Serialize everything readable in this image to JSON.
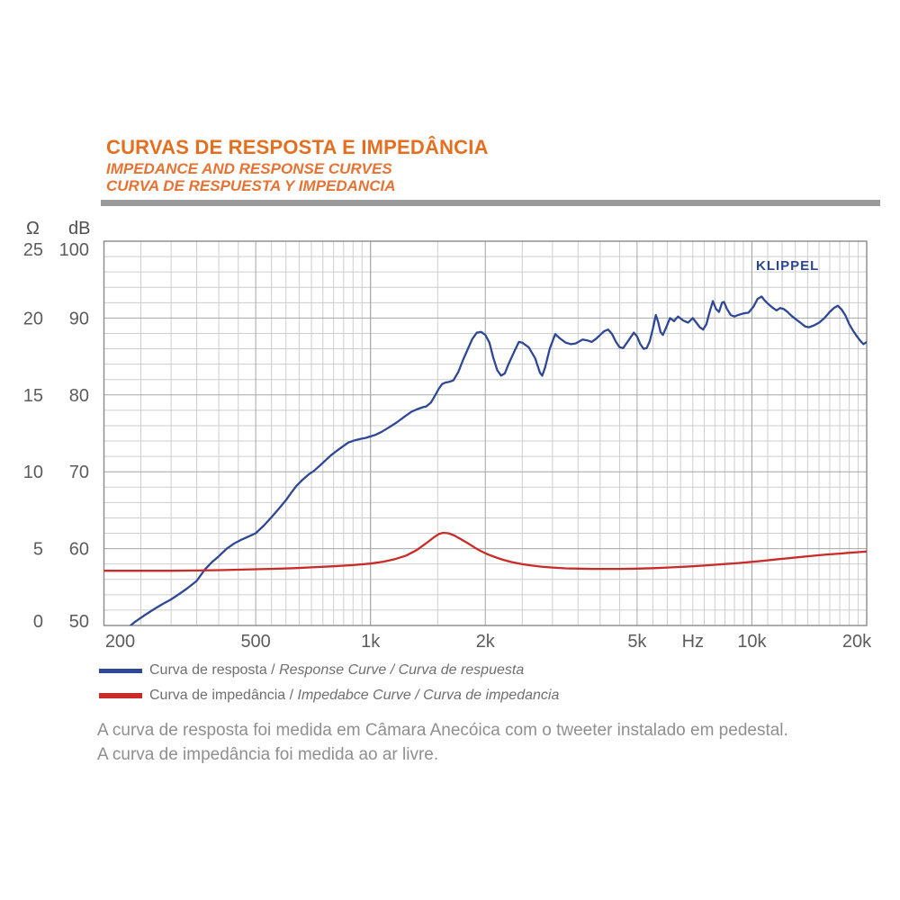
{
  "header": {
    "title": "CURVAS DE RESPOSTA E IMPEDÂNCIA",
    "subtitle_en": "IMPEDANCE AND RESPONSE CURVES",
    "subtitle_es": "CURVA DE RESPUESTA Y IMPEDANCIA"
  },
  "axis": {
    "ohm_header": "Ω",
    "db_header": "dB"
  },
  "chart_data": {
    "type": "line",
    "watermark": "KLIPPEL",
    "x_axis": {
      "scale": "log",
      "min": 200,
      "max": 20000,
      "unit": "Hz",
      "ticks": [
        {
          "f": 200,
          "label": "200"
        },
        {
          "f": 500,
          "label": "500"
        },
        {
          "f": 1000,
          "label": "1k"
        },
        {
          "f": 2000,
          "label": "2k"
        },
        {
          "f": 5000,
          "label": "5k"
        },
        {
          "f": 7000,
          "label": "Hz"
        },
        {
          "f": 10000,
          "label": "10k"
        },
        {
          "f": 20000,
          "label": "20k"
        }
      ],
      "minor_segments": [
        [
          200,
          1000,
          50
        ],
        [
          1000,
          10000,
          500
        ],
        [
          10000,
          20000,
          1000
        ]
      ],
      "major_lines": [
        500,
        1000,
        2000,
        5000,
        10000
      ]
    },
    "y_db": {
      "min": 50,
      "max": 100,
      "minor_step": 2,
      "ticks": [
        100,
        90,
        80,
        70,
        60,
        50
      ]
    },
    "y_ohm": {
      "min": 0,
      "max": 25,
      "ticks": [
        25,
        20,
        15,
        10,
        5,
        0
      ]
    },
    "grid": "on",
    "series": [
      {
        "name": "Response Curve",
        "axis": "db",
        "color": "#2f4896",
        "points": [
          [
            225,
            49.2
          ],
          [
            240,
            50.4
          ],
          [
            255,
            51.3
          ],
          [
            270,
            52.1
          ],
          [
            285,
            52.8
          ],
          [
            300,
            53.4
          ],
          [
            315,
            54.1
          ],
          [
            330,
            54.8
          ],
          [
            350,
            55.8
          ],
          [
            368,
            57.3
          ],
          [
            385,
            58.3
          ],
          [
            400,
            59.0
          ],
          [
            420,
            60.0
          ],
          [
            440,
            60.7
          ],
          [
            460,
            61.2
          ],
          [
            480,
            61.6
          ],
          [
            500,
            62.0
          ],
          [
            525,
            63.0
          ],
          [
            550,
            64.1
          ],
          [
            575,
            65.2
          ],
          [
            600,
            66.3
          ],
          [
            620,
            67.3
          ],
          [
            640,
            68.2
          ],
          [
            665,
            69.0
          ],
          [
            690,
            69.7
          ],
          [
            710,
            70.1
          ],
          [
            740,
            70.9
          ],
          [
            770,
            71.7
          ],
          [
            790,
            72.2
          ],
          [
            815,
            72.7
          ],
          [
            840,
            73.2
          ],
          [
            875,
            73.8
          ],
          [
            910,
            74.1
          ],
          [
            945,
            74.3
          ],
          [
            970,
            74.4
          ],
          [
            1000,
            74.6
          ],
          [
            1030,
            74.8
          ],
          [
            1070,
            75.2
          ],
          [
            1120,
            75.8
          ],
          [
            1170,
            76.4
          ],
          [
            1230,
            77.2
          ],
          [
            1280,
            77.8
          ],
          [
            1320,
            78.1
          ],
          [
            1370,
            78.4
          ],
          [
            1400,
            78.5
          ],
          [
            1440,
            79.0
          ],
          [
            1480,
            80.0
          ],
          [
            1510,
            80.8
          ],
          [
            1540,
            81.4
          ],
          [
            1570,
            81.6
          ],
          [
            1610,
            81.7
          ],
          [
            1650,
            81.9
          ],
          [
            1700,
            83.0
          ],
          [
            1750,
            84.6
          ],
          [
            1800,
            86.0
          ],
          [
            1850,
            87.3
          ],
          [
            1900,
            88.1
          ],
          [
            1950,
            88.2
          ],
          [
            2000,
            87.8
          ],
          [
            2050,
            86.8
          ],
          [
            2100,
            84.8
          ],
          [
            2150,
            83.2
          ],
          [
            2200,
            82.5
          ],
          [
            2250,
            82.8
          ],
          [
            2300,
            84.0
          ],
          [
            2400,
            86.0
          ],
          [
            2450,
            86.9
          ],
          [
            2500,
            86.8
          ],
          [
            2600,
            86.2
          ],
          [
            2700,
            84.8
          ],
          [
            2780,
            82.9
          ],
          [
            2820,
            82.5
          ],
          [
            2870,
            83.6
          ],
          [
            2950,
            86.0
          ],
          [
            3050,
            87.9
          ],
          [
            3150,
            87.3
          ],
          [
            3250,
            86.8
          ],
          [
            3350,
            86.6
          ],
          [
            3450,
            86.7
          ],
          [
            3600,
            87.2
          ],
          [
            3700,
            87.1
          ],
          [
            3800,
            86.9
          ],
          [
            3900,
            87.3
          ],
          [
            4000,
            87.8
          ],
          [
            4100,
            88.3
          ],
          [
            4200,
            88.5
          ],
          [
            4300,
            87.9
          ],
          [
            4400,
            86.9
          ],
          [
            4500,
            86.2
          ],
          [
            4600,
            86.1
          ],
          [
            4750,
            87.1
          ],
          [
            4900,
            88.1
          ],
          [
            5000,
            87.6
          ],
          [
            5100,
            86.6
          ],
          [
            5200,
            86.0
          ],
          [
            5300,
            86.1
          ],
          [
            5400,
            87.0
          ],
          [
            5500,
            88.6
          ],
          [
            5600,
            90.4
          ],
          [
            5680,
            89.5
          ],
          [
            5760,
            88.2
          ],
          [
            5840,
            87.8
          ],
          [
            5950,
            88.7
          ],
          [
            6100,
            90.0
          ],
          [
            6250,
            89.6
          ],
          [
            6400,
            90.2
          ],
          [
            6600,
            89.7
          ],
          [
            6800,
            89.4
          ],
          [
            7000,
            90.0
          ],
          [
            7150,
            89.4
          ],
          [
            7300,
            88.8
          ],
          [
            7450,
            88.5
          ],
          [
            7600,
            89.2
          ],
          [
            7750,
            90.8
          ],
          [
            7900,
            92.2
          ],
          [
            8050,
            91.2
          ],
          [
            8200,
            90.8
          ],
          [
            8350,
            92.0
          ],
          [
            8450,
            92.1
          ],
          [
            8600,
            91.2
          ],
          [
            8800,
            90.4
          ],
          [
            9000,
            90.2
          ],
          [
            9200,
            90.4
          ],
          [
            9500,
            90.6
          ],
          [
            9800,
            90.7
          ],
          [
            10100,
            91.5
          ],
          [
            10350,
            92.5
          ],
          [
            10600,
            92.8
          ],
          [
            10800,
            92.3
          ],
          [
            11000,
            91.9
          ],
          [
            11300,
            91.4
          ],
          [
            11600,
            91.0
          ],
          [
            11850,
            91.3
          ],
          [
            12100,
            91.2
          ],
          [
            12400,
            90.8
          ],
          [
            12700,
            90.3
          ],
          [
            13000,
            89.9
          ],
          [
            13400,
            89.4
          ],
          [
            13800,
            88.9
          ],
          [
            14100,
            88.8
          ],
          [
            14500,
            89.0
          ],
          [
            15000,
            89.4
          ],
          [
            15500,
            90.0
          ],
          [
            16000,
            90.8
          ],
          [
            16400,
            91.3
          ],
          [
            16800,
            91.6
          ],
          [
            17200,
            91.1
          ],
          [
            17600,
            90.3
          ],
          [
            18000,
            89.2
          ],
          [
            18400,
            88.4
          ],
          [
            18800,
            87.7
          ],
          [
            19200,
            87.1
          ],
          [
            19600,
            86.6
          ],
          [
            19900,
            86.8
          ],
          [
            20000,
            86.9
          ]
        ]
      },
      {
        "name": "Impedance Curve",
        "axis": "ohm",
        "color": "#c82b28",
        "points": [
          [
            200,
            3.56
          ],
          [
            250,
            3.56
          ],
          [
            300,
            3.56
          ],
          [
            350,
            3.58
          ],
          [
            400,
            3.6
          ],
          [
            450,
            3.63
          ],
          [
            500,
            3.66
          ],
          [
            560,
            3.69
          ],
          [
            630,
            3.73
          ],
          [
            700,
            3.78
          ],
          [
            800,
            3.85
          ],
          [
            900,
            3.93
          ],
          [
            1000,
            4.03
          ],
          [
            1080,
            4.15
          ],
          [
            1160,
            4.32
          ],
          [
            1240,
            4.55
          ],
          [
            1320,
            4.9
          ],
          [
            1400,
            5.35
          ],
          [
            1460,
            5.7
          ],
          [
            1510,
            5.95
          ],
          [
            1550,
            6.03
          ],
          [
            1600,
            6.0
          ],
          [
            1660,
            5.85
          ],
          [
            1730,
            5.6
          ],
          [
            1800,
            5.35
          ],
          [
            1880,
            5.05
          ],
          [
            1950,
            4.83
          ],
          [
            2030,
            4.63
          ],
          [
            2120,
            4.45
          ],
          [
            2220,
            4.28
          ],
          [
            2350,
            4.12
          ],
          [
            2500,
            3.99
          ],
          [
            2650,
            3.9
          ],
          [
            2800,
            3.83
          ],
          [
            3000,
            3.77
          ],
          [
            3250,
            3.72
          ],
          [
            3500,
            3.7
          ],
          [
            3800,
            3.68
          ],
          [
            4100,
            3.68
          ],
          [
            4500,
            3.68
          ],
          [
            5000,
            3.7
          ],
          [
            5500,
            3.73
          ],
          [
            6000,
            3.77
          ],
          [
            6500,
            3.81
          ],
          [
            7000,
            3.85
          ],
          [
            7500,
            3.9
          ],
          [
            8000,
            3.95
          ],
          [
            8500,
            4.0
          ],
          [
            9000,
            4.04
          ],
          [
            9500,
            4.09
          ],
          [
            10000,
            4.14
          ],
          [
            10700,
            4.21
          ],
          [
            11500,
            4.29
          ],
          [
            12300,
            4.36
          ],
          [
            13200,
            4.44
          ],
          [
            14000,
            4.5
          ],
          [
            15000,
            4.57
          ],
          [
            16000,
            4.63
          ],
          [
            17000,
            4.68
          ],
          [
            18000,
            4.73
          ],
          [
            19000,
            4.77
          ],
          [
            20000,
            4.81
          ]
        ]
      }
    ]
  },
  "legend": {
    "items": [
      {
        "color": "#2f4896",
        "pt": "Curva de resposta / ",
        "it": "Response Curve / Curva de respuesta"
      },
      {
        "color": "#c82b28",
        "pt": "Curva de impedância / ",
        "it": "Impedabce Curve / Curva de impedancia"
      }
    ]
  },
  "footer": {
    "line1": "A curva de resposta foi medida em Câmara Anecóica com o tweeter instalado em pedestal.",
    "line2": "A curva de impedância foi medida ao ar livre."
  },
  "colors": {
    "accent_orange": "#e56f20",
    "response_blue": "#2f4896",
    "impedance_red": "#c82b28",
    "watermark_navy": "#2b4590",
    "rule_gray": "#9b9b9b"
  }
}
